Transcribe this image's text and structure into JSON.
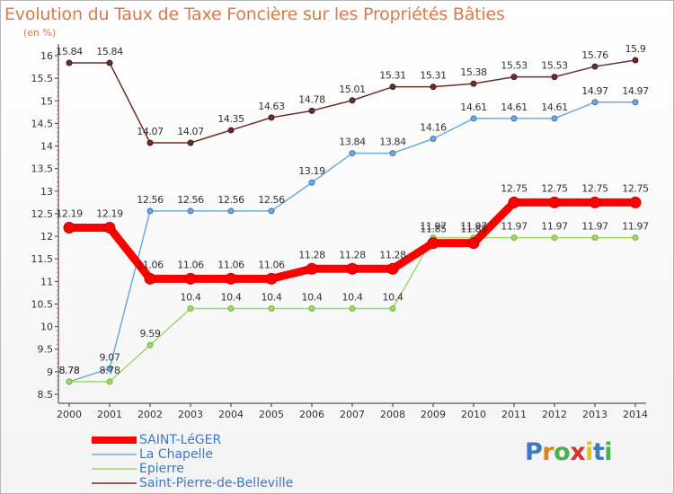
{
  "header": {
    "title": "Evolution du Taux de Taxe Foncière sur les Propriétés Bâties",
    "unit": "(en %)"
  },
  "logo": {
    "text": "Proxiti",
    "colors": [
      "#3a7bc8",
      "#e2831b",
      "#4caf50",
      "#d9342b",
      "#e2c21b",
      "#3a7bc8",
      "#4caf50"
    ]
  },
  "chart_data": {
    "type": "line",
    "title": "Evolution du Taux de Taxe Foncière sur les Propriétés Bâties",
    "ylabel": "(en %)",
    "xlabel": "",
    "ylim": [
      8.5,
      16
    ],
    "yticks": [
      "8.5",
      "9",
      "9.5",
      "10",
      "10.5",
      "11",
      "11.5",
      "12",
      "12.5",
      "13",
      "13.5",
      "14",
      "14.5",
      "15",
      "15.5",
      "16"
    ],
    "x": [
      "2000",
      "2001",
      "2002",
      "2003",
      "2004",
      "2005",
      "2006",
      "2007",
      "2008",
      "2009",
      "2010",
      "2011",
      "2012",
      "2013",
      "2014"
    ],
    "series": [
      {
        "name": "Saint-Pierre-de-Belleville",
        "color": "#6b2f2f",
        "values": [
          15.84,
          15.84,
          14.07,
          14.07,
          14.35,
          14.63,
          14.78,
          15.01,
          15.31,
          15.31,
          15.38,
          15.53,
          15.53,
          15.76,
          15.9
        ],
        "labels": [
          "15.84",
          "15.84",
          "14.07",
          "14.07",
          "14.35",
          "14.63",
          "14.78",
          "15.01",
          "15.31",
          "15.31",
          "15.38",
          "15.53",
          "15.53",
          "15.76",
          "15.9"
        ]
      },
      {
        "name": "La Chapelle",
        "color": "#6fa8dc",
        "values": [
          8.78,
          9.07,
          12.56,
          12.56,
          12.56,
          12.56,
          13.19,
          13.84,
          13.84,
          14.16,
          14.61,
          14.61,
          14.61,
          14.97,
          14.97
        ],
        "labels": [
          "8.78",
          "9.07",
          "12.56",
          "12.56",
          "12.56",
          "12.56",
          "13.19",
          "13.84",
          "13.84",
          "14.16",
          "14.61",
          "14.61",
          "14.61",
          "14.97",
          "14.97"
        ]
      },
      {
        "name": "Epierre",
        "color": "#9fd86c",
        "values": [
          8.78,
          8.78,
          9.59,
          10.4,
          10.4,
          10.4,
          10.4,
          10.4,
          10.4,
          11.97,
          11.97,
          11.97,
          11.97,
          11.97,
          11.97
        ],
        "labels": [
          "8.78",
          "8.78",
          "9.59",
          "10.4",
          "10.4",
          "10.4",
          "10.4",
          "10.4",
          "10.4",
          "11.97",
          "11.97",
          "11.97",
          "11.97",
          "11.97",
          "11.97"
        ]
      },
      {
        "name": "SAINT-LéGER",
        "color": "#ff0000",
        "values": [
          12.19,
          12.19,
          11.06,
          11.06,
          11.06,
          11.06,
          11.28,
          11.28,
          11.28,
          11.85,
          11.85,
          12.75,
          12.75,
          12.75,
          12.75
        ],
        "labels": [
          "12.19",
          "12.19",
          "11.06",
          "11.06",
          "11.06",
          "11.06",
          "11.28",
          "11.28",
          "11.28",
          "11.85",
          "11.85",
          "12.75",
          "12.75",
          "12.75",
          "12.75"
        ]
      }
    ],
    "legend": [
      "SAINT-LéGER",
      "La Chapelle",
      "Epierre",
      "Saint-Pierre-de-Belleville"
    ],
    "legend_position": "bottom-left",
    "grid": false
  }
}
